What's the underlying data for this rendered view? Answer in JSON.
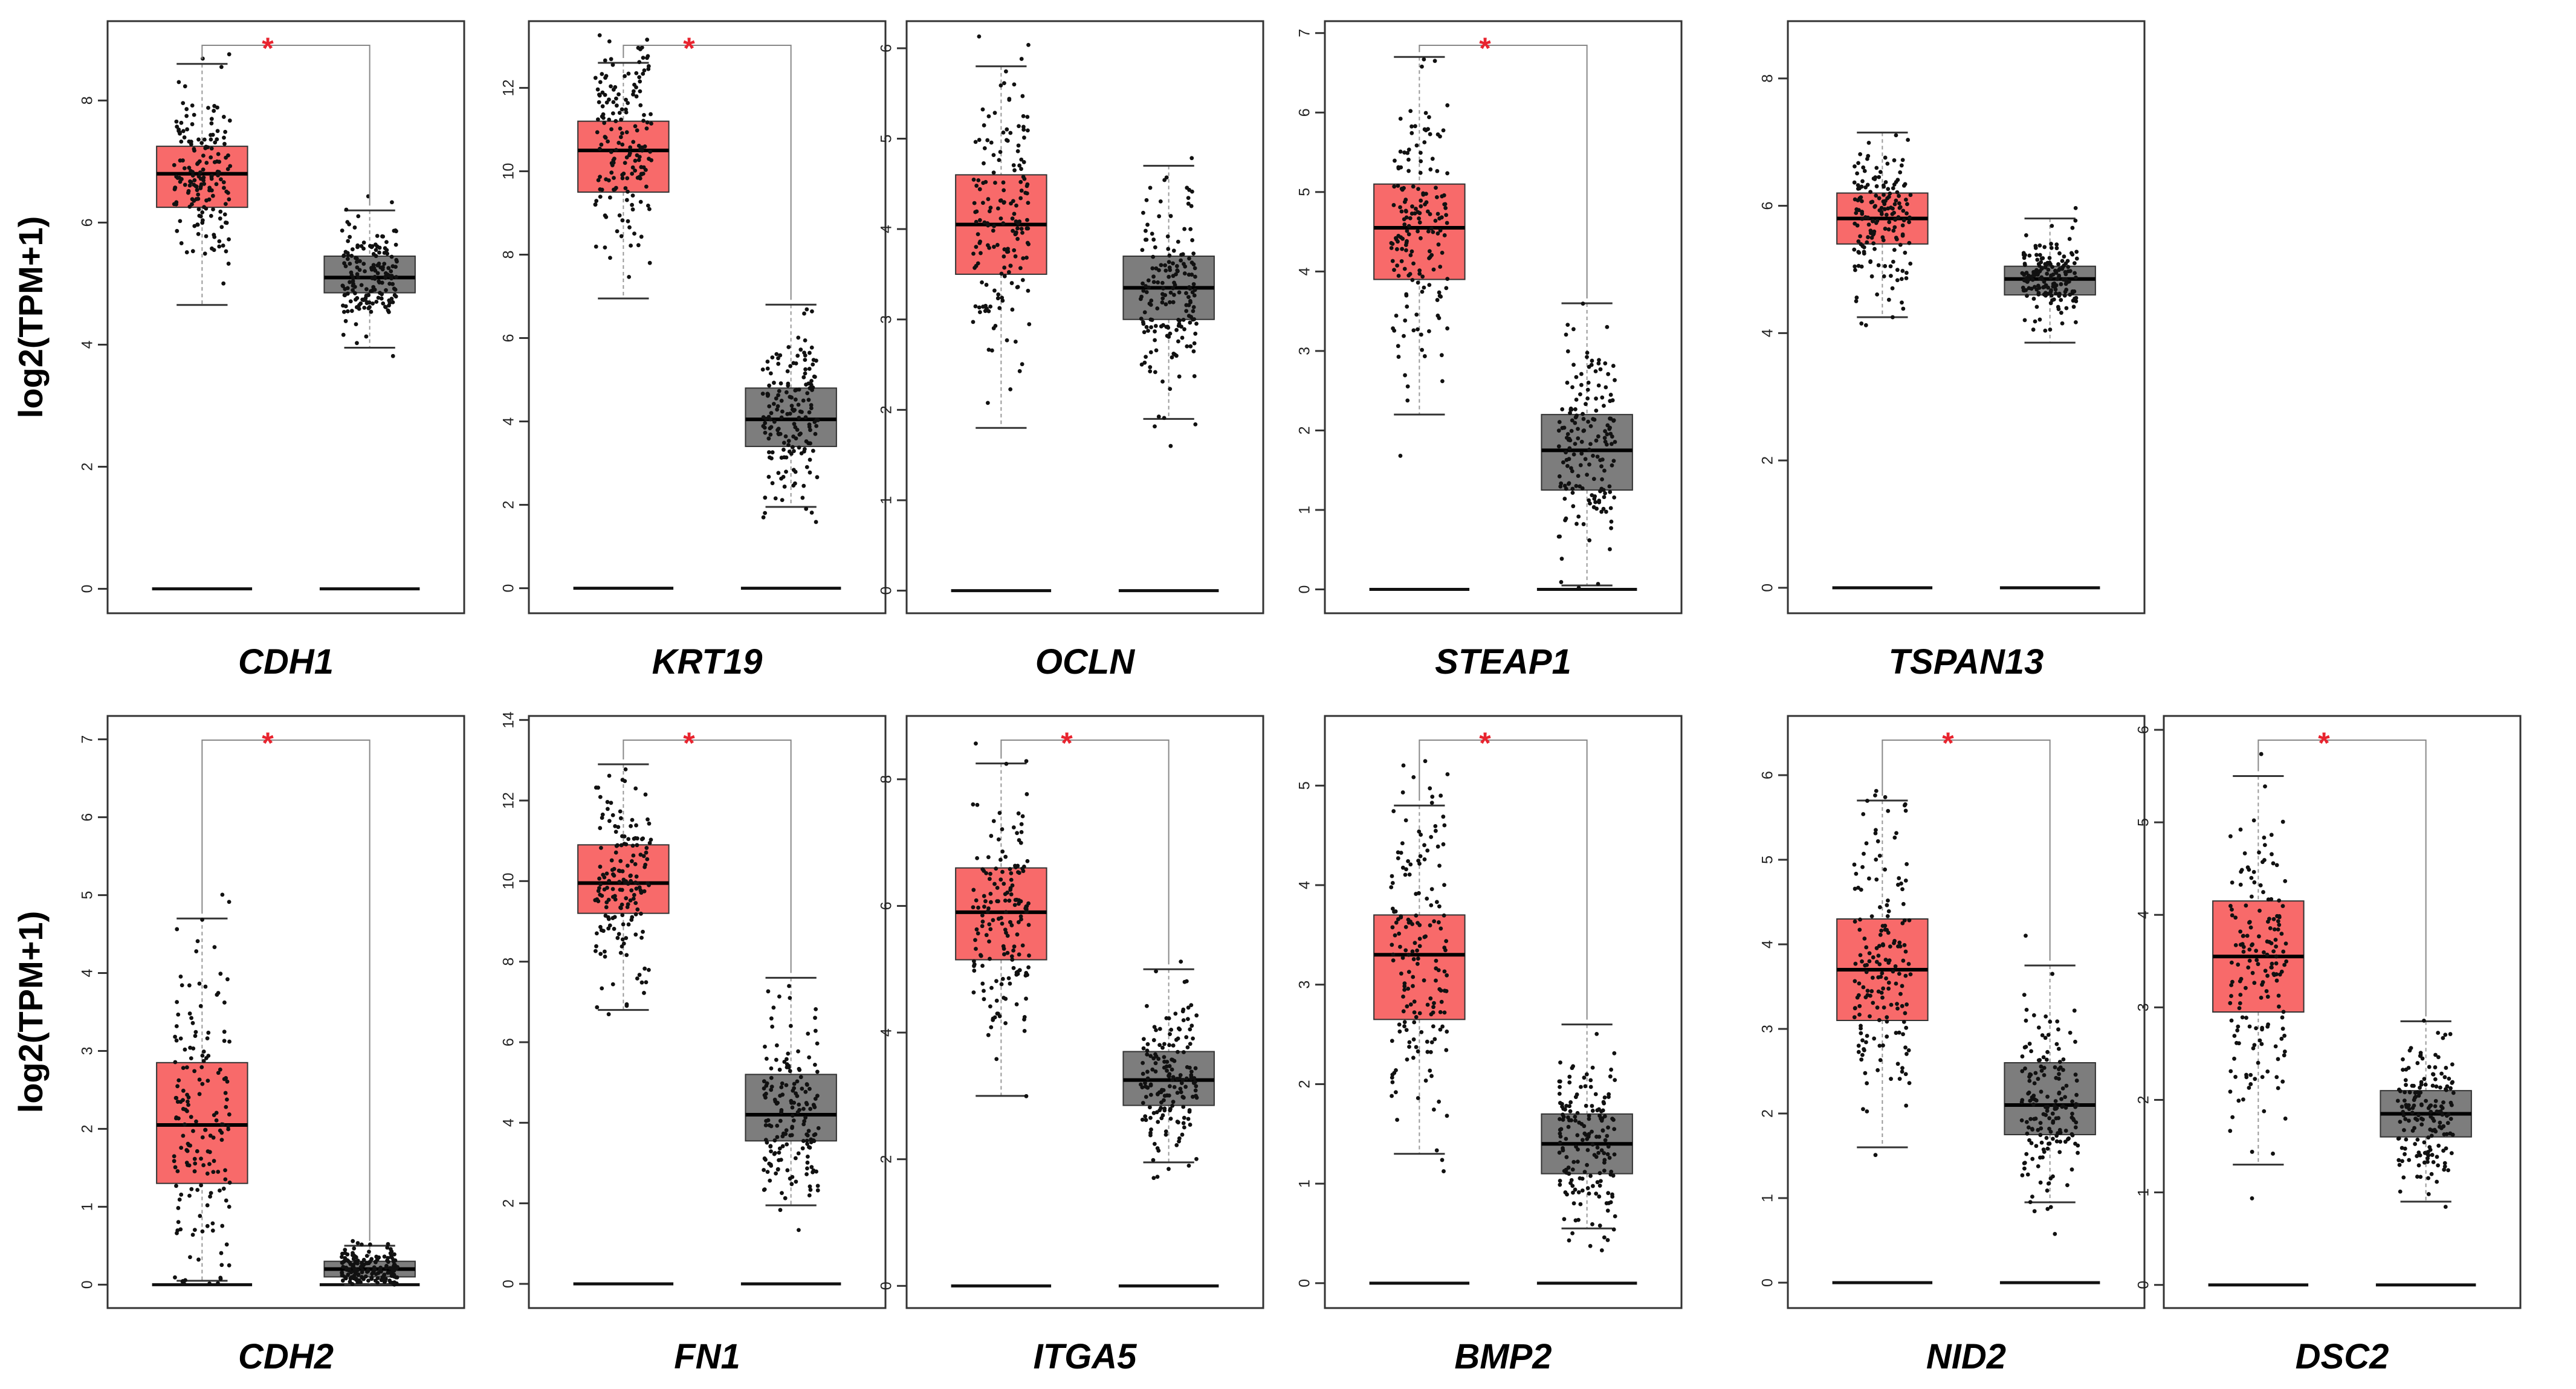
{
  "chart_data": [
    {
      "gene": "CDH1",
      "ylabel": "log2(TPM+1)",
      "ylim": [
        -0.4,
        9.3
      ],
      "ticks": [
        0,
        2,
        4,
        6,
        8
      ],
      "significant": true,
      "tumor": {
        "q1": 6.25,
        "median": 6.8,
        "q3": 7.25,
        "wlo": 4.65,
        "whi": 8.6
      },
      "normal": {
        "q1": 4.85,
        "median": 5.1,
        "q3": 5.45,
        "wlo": 3.95,
        "whi": 6.2
      }
    },
    {
      "gene": "KRT19",
      "ylabel": "",
      "ylim": [
        -0.6,
        13.6
      ],
      "ticks": [
        0,
        2,
        4,
        6,
        8,
        10,
        12
      ],
      "significant": true,
      "tumor": {
        "q1": 9.5,
        "median": 10.5,
        "q3": 11.2,
        "wlo": 6.95,
        "whi": 12.6
      },
      "normal": {
        "q1": 3.4,
        "median": 4.05,
        "q3": 4.8,
        "wlo": 1.95,
        "whi": 6.8
      }
    },
    {
      "gene": "OCLN",
      "ylabel": "",
      "ylim": [
        -0.25,
        6.3
      ],
      "ticks": [
        0,
        1,
        2,
        3,
        4,
        5,
        6
      ],
      "significant": false,
      "tumor": {
        "q1": 3.5,
        "median": 4.05,
        "q3": 4.6,
        "wlo": 1.8,
        "whi": 5.8
      },
      "normal": {
        "q1": 3.0,
        "median": 3.35,
        "q3": 3.7,
        "wlo": 1.9,
        "whi": 4.7
      }
    },
    {
      "gene": "STEAP1",
      "ylabel": "",
      "ylim": [
        -0.3,
        7.15
      ],
      "ticks": [
        0,
        1,
        2,
        3,
        4,
        5,
        6,
        7
      ],
      "significant": true,
      "tumor": {
        "q1": 3.9,
        "median": 4.55,
        "q3": 5.1,
        "wlo": 2.2,
        "whi": 6.7
      },
      "normal": {
        "q1": 1.25,
        "median": 1.75,
        "q3": 2.2,
        "wlo": 0.05,
        "whi": 3.6
      }
    },
    {
      "gene": "TSPAN13",
      "ylabel": "",
      "ylim": [
        -0.4,
        8.9
      ],
      "ticks": [
        0,
        2,
        4,
        6,
        8
      ],
      "significant": false,
      "tumor": {
        "q1": 5.4,
        "median": 5.8,
        "q3": 6.2,
        "wlo": 4.25,
        "whi": 7.15
      },
      "normal": {
        "q1": 4.6,
        "median": 4.85,
        "q3": 5.05,
        "wlo": 3.85,
        "whi": 5.8
      }
    },
    {
      "gene": "CDH2",
      "ylabel": "log2(TPM+1)",
      "ylim": [
        -0.3,
        7.3
      ],
      "ticks": [
        0,
        1,
        2,
        3,
        4,
        5,
        6,
        7
      ],
      "significant": true,
      "tumor": {
        "q1": 1.3,
        "median": 2.05,
        "q3": 2.85,
        "wlo": 0.05,
        "whi": 4.7
      },
      "normal": {
        "q1": 0.1,
        "median": 0.2,
        "q3": 0.3,
        "wlo": 0.0,
        "whi": 0.5
      }
    },
    {
      "gene": "FN1",
      "ylabel": "",
      "ylim": [
        -0.6,
        14.1
      ],
      "ticks": [
        0,
        2,
        4,
        6,
        8,
        10,
        12,
        14
      ],
      "significant": true,
      "tumor": {
        "q1": 9.2,
        "median": 9.95,
        "q3": 10.9,
        "wlo": 6.8,
        "whi": 12.9
      },
      "normal": {
        "q1": 3.55,
        "median": 4.2,
        "q3": 5.2,
        "wlo": 1.95,
        "whi": 7.6
      }
    },
    {
      "gene": "ITGA5",
      "ylabel": "",
      "ylim": [
        -0.35,
        9.0
      ],
      "ticks": [
        0,
        2,
        4,
        6,
        8
      ],
      "significant": true,
      "tumor": {
        "q1": 5.15,
        "median": 5.9,
        "q3": 6.6,
        "wlo": 3.0,
        "whi": 8.25
      },
      "normal": {
        "q1": 2.85,
        "median": 3.25,
        "q3": 3.7,
        "wlo": 1.95,
        "whi": 5.0
      }
    },
    {
      "gene": "BMP2",
      "ylabel": "",
      "ylim": [
        -0.25,
        5.7
      ],
      "ticks": [
        0,
        1,
        2,
        3,
        4,
        5
      ],
      "significant": true,
      "tumor": {
        "q1": 2.65,
        "median": 3.3,
        "q3": 3.7,
        "wlo": 1.3,
        "whi": 4.8
      },
      "normal": {
        "q1": 1.1,
        "median": 1.4,
        "q3": 1.7,
        "wlo": 0.55,
        "whi": 2.6
      }
    },
    {
      "gene": "NID2",
      "ylabel": "",
      "ylim": [
        -0.3,
        6.7
      ],
      "ticks": [
        0,
        1,
        2,
        3,
        4,
        5,
        6
      ],
      "significant": true,
      "tumor": {
        "q1": 3.1,
        "median": 3.7,
        "q3": 4.3,
        "wlo": 1.6,
        "whi": 5.7
      },
      "normal": {
        "q1": 1.75,
        "median": 2.1,
        "q3": 2.6,
        "wlo": 0.95,
        "whi": 3.75
      }
    },
    {
      "gene": "DSC2",
      "ylabel": "",
      "ylim": [
        -0.25,
        6.15
      ],
      "ticks": [
        0,
        1,
        2,
        3,
        4,
        5,
        6
      ],
      "significant": true,
      "tumor": {
        "q1": 2.95,
        "median": 3.55,
        "q3": 4.15,
        "wlo": 1.3,
        "whi": 5.5
      },
      "normal": {
        "q1": 1.6,
        "median": 1.85,
        "q3": 2.1,
        "wlo": 0.9,
        "whi": 2.85
      }
    }
  ],
  "style": {
    "tumor_color": "#f86a6a",
    "normal_color": "#7d7d7d",
    "point_color": "#111111",
    "sig_color": "#e8242f"
  }
}
